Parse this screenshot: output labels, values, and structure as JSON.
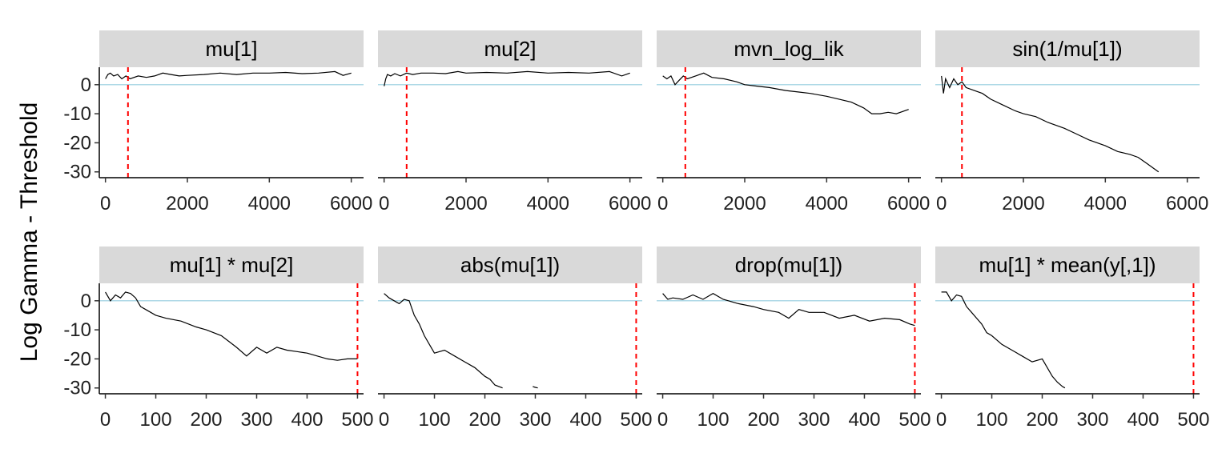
{
  "chart_data": {
    "type": "line",
    "ylabel": "Log Gamma - Threshold",
    "colors": {
      "line": "#000000",
      "threshold_line": "#ADD8E6",
      "marker_line": "#FF0000",
      "strip_fill": "#D9D9D9"
    },
    "ylim": [
      -32,
      6
    ],
    "y_ticks": [
      0,
      -10,
      -20,
      -30
    ],
    "y_tick_labels": [
      "0",
      "-10",
      "-20",
      "-30"
    ],
    "threshold_y": 0,
    "rows": [
      {
        "xlim": [
          -150,
          6300
        ],
        "x_ticks": [
          0,
          2000,
          4000,
          6000
        ],
        "x_tick_labels": [
          "0",
          "2000",
          "4000",
          "6000"
        ],
        "panels": [
          {
            "title": "mu[1]",
            "marker_x": 550,
            "x": [
              0,
              60,
              120,
              200,
              300,
              400,
              500,
              600,
              800,
              1000,
              1200,
              1400,
              1600,
              1800,
              2000,
              2400,
              2800,
              3200,
              3600,
              4000,
              4400,
              4800,
              5200,
              5600,
              5800,
              6000
            ],
            "y": [
              2,
              3.5,
              4,
              3,
              3.5,
              2,
              3,
              2,
              3,
              2.5,
              3,
              4,
              3.5,
              3,
              3.2,
              3.5,
              4,
              3.5,
              4,
              4,
              4.2,
              3.8,
              4,
              4.5,
              3.2,
              4
            ]
          },
          {
            "title": "mu[2]",
            "marker_x": 550,
            "x": [
              0,
              40,
              80,
              160,
              260,
              400,
              550,
              700,
              900,
              1200,
              1500,
              1800,
              2000,
              2500,
              3000,
              3500,
              4000,
              4500,
              5000,
              5500,
              5800,
              6000
            ],
            "y": [
              -0.5,
              2,
              3.5,
              3,
              3.8,
              3,
              4,
              3.5,
              4,
              4,
              3.8,
              4.5,
              4,
              4.2,
              4,
              4.5,
              4,
              4.2,
              4,
              4.5,
              3,
              4
            ]
          },
          {
            "title": "mvn_log_lik",
            "marker_x": 550,
            "x": [
              0,
              100,
              200,
              300,
              400,
              500,
              600,
              800,
              1000,
              1200,
              1500,
              1800,
              2000,
              2300,
              2600,
              3000,
              3300,
              3600,
              4000,
              4300,
              4600,
              4900,
              5100,
              5300,
              5500,
              5700,
              6000
            ],
            "y": [
              3,
              2,
              3,
              0,
              1.5,
              3,
              2,
              3,
              4,
              2.5,
              2,
              1,
              0,
              -0.5,
              -1,
              -2,
              -2.5,
              -3,
              -4,
              -5,
              -6,
              -8,
              -10,
              -10,
              -9.5,
              -10,
              -8.5
            ]
          },
          {
            "title": "sin(1/mu[1])",
            "marker_x": 500,
            "x": [
              0,
              50,
              100,
              200,
              300,
              400,
              500,
              600,
              800,
              1000,
              1200,
              1500,
              1800,
              2000,
              2300,
              2600,
              3000,
              3300,
              3600,
              4000,
              4300,
              4600,
              4800,
              5000,
              5200,
              5300
            ],
            "y": [
              3,
              -3,
              2,
              -1,
              2,
              0,
              1,
              -1,
              -2,
              -3,
              -5,
              -7,
              -9,
              -10,
              -11,
              -13,
              -15,
              -17,
              -19,
              -21,
              -23,
              -24,
              -25,
              -27,
              -29,
              -30
            ]
          }
        ]
      },
      {
        "xlim": [
          -12,
          512
        ],
        "x_ticks": [
          0,
          100,
          200,
          300,
          400,
          500
        ],
        "x_tick_labels": [
          "0",
          "100",
          "200",
          "300",
          "400",
          "500"
        ],
        "panels": [
          {
            "title": "mu[1] * mu[2]",
            "marker_x": 500,
            "x": [
              0,
              10,
              20,
              30,
              40,
              50,
              60,
              70,
              80,
              100,
              120,
              150,
              180,
              200,
              230,
              260,
              280,
              300,
              320,
              340,
              360,
              380,
              400,
              420,
              440,
              460,
              480,
              500
            ],
            "y": [
              3,
              0,
              2,
              1,
              3,
              2.5,
              1,
              -2,
              -3,
              -5,
              -6,
              -7,
              -9,
              -10,
              -12,
              -16,
              -19,
              -16,
              -18,
              -16,
              -17,
              -17.5,
              -18,
              -19,
              -20,
              -20.5,
              -20,
              -20
            ]
          },
          {
            "title": "abs(mu[1])",
            "marker_x": 500,
            "x": [
              0,
              10,
              20,
              30,
              40,
              50,
              60,
              70,
              80,
              90,
              100,
              120,
              140,
              160,
              180,
              200,
              210,
              220,
              235
            ],
            "y": [
              2.5,
              1,
              0,
              -1,
              0.5,
              0,
              -5,
              -8,
              -12,
              -15,
              -18,
              -17,
              -19,
              -21,
              -23,
              -26,
              -27,
              -29,
              -30
            ],
            "x2": [
              295,
              300,
              305
            ],
            "y2": [
              -29.5,
              -29.8,
              -30
            ]
          },
          {
            "title": "drop(mu[1])",
            "marker_x": 500,
            "x": [
              0,
              10,
              20,
              40,
              60,
              80,
              100,
              120,
              150,
              180,
              200,
              230,
              250,
              270,
              290,
              320,
              350,
              380,
              410,
              440,
              470,
              490,
              500
            ],
            "y": [
              2.5,
              0.5,
              1,
              0.5,
              2,
              0.5,
              2.5,
              0.5,
              -1,
              -2,
              -3,
              -4,
              -6,
              -3,
              -4,
              -4,
              -6,
              -5,
              -7,
              -6,
              -6.5,
              -8,
              -8.5
            ]
          },
          {
            "title": "mu[1] * mean(y[,1])",
            "marker_x": 500,
            "x": [
              0,
              10,
              20,
              30,
              40,
              50,
              60,
              70,
              80,
              90,
              100,
              120,
              140,
              160,
              180,
              200,
              210,
              220,
              230,
              240,
              245
            ],
            "y": [
              3,
              3,
              0,
              2,
              1.5,
              -2,
              -4,
              -6,
              -8,
              -11,
              -12,
              -15,
              -17,
              -19,
              -21,
              -20,
              -23,
              -26,
              -28,
              -29.5,
              -30
            ]
          }
        ]
      }
    ]
  }
}
